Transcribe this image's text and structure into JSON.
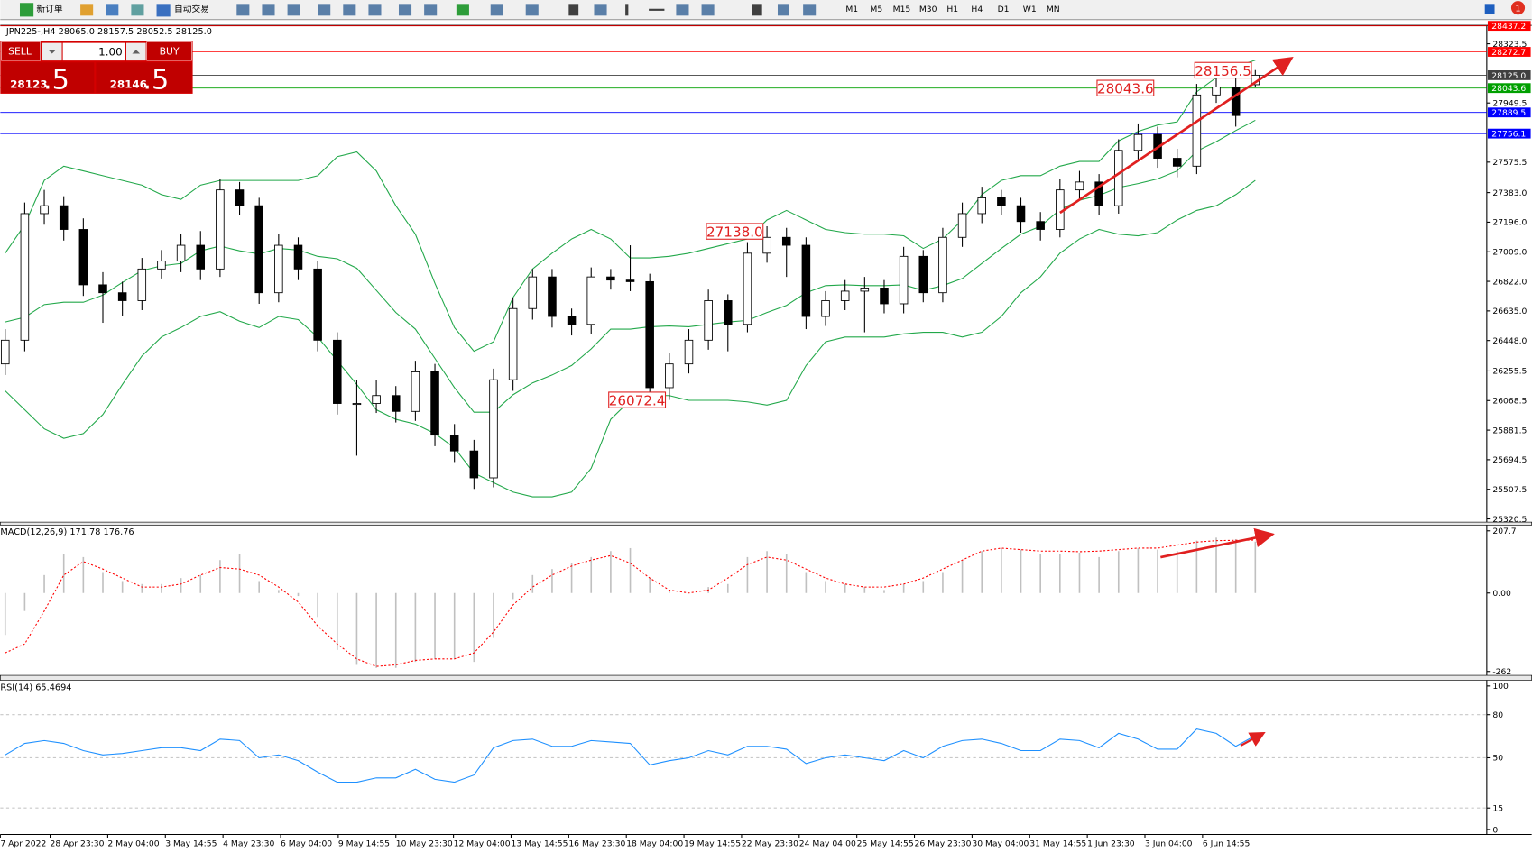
{
  "toolbar": {
    "new_order": "新订单",
    "auto_trading": "自动交易",
    "timeframes": [
      "M1",
      "M5",
      "M15",
      "M30",
      "H1",
      "H4",
      "D1",
      "W1",
      "MN"
    ],
    "alerts": "1"
  },
  "trade_panel": {
    "sell": "SELL",
    "buy": "BUY",
    "lots": "1.00",
    "bid_main": "28123",
    "bid_tail": ".5",
    "ask_main": "28146",
    "ask_tail": ".5"
  },
  "chart_data": [
    {
      "type": "candlestick",
      "title": "JPN225-,H4  28065.0 28157.5 28052.5 28125.0",
      "xlim": [
        -0.25,
        75.85
      ],
      "xticks": [
        {
          "value": -0.25,
          "label": "7 Apr 2022"
        },
        {
          "value": 2.3,
          "label": "28 Apr 23:30"
        },
        {
          "value": 5.25,
          "label": "2 May 04:00"
        },
        {
          "value": 8.2,
          "label": "3 May 14:55"
        },
        {
          "value": 11.15,
          "label": "4 May 23:30"
        },
        {
          "value": 14.1,
          "label": "6 May 04:00"
        },
        {
          "value": 17.05,
          "label": "9 May 14:55"
        },
        {
          "value": 20,
          "label": "10 May 23:30"
        },
        {
          "value": 22.95,
          "label": "12 May 04:00"
        },
        {
          "value": 25.9,
          "label": "13 May 14:55"
        },
        {
          "value": 28.85,
          "label": "16 May 23:30"
        },
        {
          "value": 31.8,
          "label": "18 May 04:00"
        },
        {
          "value": 34.75,
          "label": "19 May 14:55"
        },
        {
          "value": 37.7,
          "label": "22 May 23:30"
        },
        {
          "value": 40.65,
          "label": "24 May 04:00"
        },
        {
          "value": 43.6,
          "label": "25 May 14:55"
        },
        {
          "value": 46.55,
          "label": "26 May 23:30"
        },
        {
          "value": 49.5,
          "label": "30 May 04:00"
        },
        {
          "value": 52.45,
          "label": "31 May 14:55"
        },
        {
          "value": 55.4,
          "label": "1 Jun 23:30"
        },
        {
          "value": 58.35,
          "label": "3 Jun 04:00"
        },
        {
          "value": 61.3,
          "label": "6 Jun 14:55"
        }
      ],
      "ylim": [
        25300,
        28440
      ],
      "yticks": [
        28323.5,
        27949.5,
        27575.5,
        {
          "value": 27383,
          "label": "27383.0"
        },
        {
          "value": 27196,
          "label": "27196.0"
        },
        {
          "value": 27009,
          "label": "27009.0"
        },
        {
          "value": 26822,
          "label": "26822.0"
        },
        {
          "value": 26635,
          "label": "26635.0"
        },
        {
          "value": 26448,
          "label": "26448.0"
        },
        26255.5,
        26068.5,
        25881.5,
        25694.5,
        25507.5,
        25320.5
      ],
      "up_color": "#ffffff",
      "down_color": "#000000",
      "open": [
        26300,
        26450,
        27250,
        27300,
        27150,
        26800,
        26750,
        26700,
        26900,
        26950,
        27050,
        26900,
        27400,
        27300,
        26750,
        27050,
        26900,
        26450,
        26050,
        26050,
        26100,
        26000,
        26250,
        25850,
        25750,
        25580,
        26200,
        26650,
        26850,
        26600,
        26550,
        26850,
        26830,
        26820,
        26150,
        26300,
        26450,
        26700,
        26550,
        27000,
        27100,
        27050,
        26600,
        26700,
        26760,
        26780,
        26680,
        26980,
        26750,
        27100,
        27250,
        27350,
        27300,
        27200,
        27150,
        27400,
        27450,
        27300,
        27650,
        27750,
        27600,
        27550,
        28000,
        28050,
        28065
      ],
      "high": [
        26520,
        27320,
        27400,
        27360,
        27220,
        26880,
        26820,
        26970,
        27020,
        27120,
        27140,
        27470,
        27450,
        27350,
        27120,
        27100,
        26950,
        26500,
        26200,
        26200,
        26160,
        26320,
        26300,
        25920,
        25820,
        26270,
        26720,
        26900,
        26900,
        26650,
        26910,
        26900,
        27050,
        26870,
        26370,
        26520,
        26770,
        26740,
        27070,
        27170,
        27160,
        27100,
        26760,
        26830,
        26850,
        26830,
        27040,
        27020,
        27160,
        27320,
        27420,
        27400,
        27350,
        27260,
        27470,
        27520,
        27500,
        27720,
        27820,
        27800,
        27660,
        28070,
        28110,
        28110,
        28157.5
      ],
      "low": [
        26230,
        26380,
        27180,
        27080,
        26730,
        26560,
        26600,
        26640,
        26840,
        26880,
        26830,
        26850,
        27240,
        26680,
        26690,
        26830,
        26380,
        25980,
        25720,
        25990,
        25930,
        25940,
        25780,
        25680,
        25510,
        25520,
        26130,
        26580,
        26530,
        26480,
        26490,
        26770,
        26760,
        26090,
        26072.4,
        26240,
        26390,
        26380,
        26500,
        26940,
        26850,
        26520,
        26540,
        26640,
        26500,
        26620,
        26620,
        26690,
        26690,
        27040,
        27190,
        27240,
        27130,
        27080,
        27100,
        27340,
        27240,
        27250,
        27590,
        27540,
        27480,
        27500,
        27950,
        27800,
        28052.5
      ],
      "close": [
        26450,
        27250,
        27300,
        27150,
        26800,
        26750,
        26700,
        26900,
        26950,
        27050,
        26900,
        27400,
        27300,
        26750,
        27050,
        26900,
        26450,
        26050,
        26050,
        26100,
        26000,
        26250,
        25850,
        25750,
        25580,
        26200,
        26650,
        26850,
        26600,
        26550,
        26850,
        26830,
        26820,
        26150,
        26300,
        26450,
        26700,
        26550,
        27000,
        27100,
        27050,
        26600,
        26700,
        26760,
        26780,
        26680,
        26980,
        26750,
        27100,
        27250,
        27350,
        27300,
        27200,
        27150,
        27400,
        27450,
        27300,
        27650,
        27750,
        27600,
        27550,
        28000,
        28050,
        27870,
        28125
      ],
      "bands": [
        {
          "color": "#22a84a",
          "values": [
            27000,
            27180,
            27460,
            27550,
            27520,
            27490,
            27460,
            27430,
            27370,
            27340,
            27430,
            27460,
            27460,
            27460,
            27460,
            27460,
            27490,
            27610,
            27640,
            27520,
            27300,
            27120,
            26810,
            26530,
            26380,
            26440,
            26720,
            26900,
            27000,
            27090,
            27150,
            27090,
            26970,
            26970,
            26980,
            27000,
            27030,
            27060,
            27090,
            27210,
            27270,
            27210,
            27150,
            27130,
            27120,
            27120,
            27110,
            27030,
            27090,
            27210,
            27370,
            27460,
            27490,
            27490,
            27550,
            27580,
            27580,
            27710,
            27770,
            27810,
            27830,
            28020,
            28110,
            28180,
            28220
          ]
        },
        {
          "color": "#22a84a",
          "values": [
            26565,
            26595,
            26675,
            26690,
            26690,
            26735,
            26815,
            26890,
            26920,
            26935,
            27015,
            27045,
            27015,
            26995,
            27030,
            27020,
            26980,
            26965,
            26905,
            26765,
            26625,
            26520,
            26335,
            26150,
            25995,
            25995,
            26105,
            26180,
            26230,
            26290,
            26395,
            26520,
            26520,
            26535,
            26540,
            26535,
            26550,
            26565,
            26575,
            26625,
            26670,
            26750,
            26795,
            26800,
            26795,
            26795,
            26800,
            26765,
            26795,
            26840,
            26935,
            27030,
            27120,
            27170,
            27275,
            27335,
            27365,
            27415,
            27440,
            27470,
            27520,
            27645,
            27705,
            27775,
            27840
          ]
        },
        {
          "color": "#22a84a",
          "values": [
            26130,
            26010,
            25890,
            25830,
            25860,
            25980,
            26170,
            26350,
            26470,
            26530,
            26600,
            26630,
            26570,
            26530,
            26600,
            26580,
            26470,
            26320,
            26170,
            26010,
            25950,
            25920,
            25860,
            25770,
            25610,
            25550,
            25490,
            25460,
            25460,
            25490,
            25640,
            25950,
            26070,
            26100,
            26100,
            26070,
            26070,
            26070,
            26060,
            26040,
            26070,
            26290,
            26440,
            26470,
            26470,
            26470,
            26490,
            26500,
            26500,
            26470,
            26500,
            26600,
            26750,
            26850,
            27000,
            27090,
            27150,
            27120,
            27110,
            27130,
            27210,
            27270,
            27300,
            27370,
            27460
          ]
        }
      ],
      "levels": [
        {
          "value": 28437.2,
          "color": "#ff0000"
        },
        {
          "value": 28272.7,
          "color": "#ff0000"
        },
        {
          "value": 28125,
          "label": "28125.0",
          "color": "#404040"
        },
        {
          "value": 28043.6,
          "color": "#00a000"
        },
        {
          "value": 27889.5,
          "color": "#0000ff"
        },
        {
          "value": 27756.1,
          "color": "#0000ff"
        }
      ],
      "annotations": [
        {
          "value": 28156.5,
          "index": 64
        },
        {
          "value": 28043.6,
          "index": 59
        },
        {
          "value": 27138,
          "label": "27138.0",
          "index": 39
        },
        {
          "value": 26072.4,
          "index": 34
        }
      ]
    },
    {
      "type": "macd",
      "title": "MACD(12,26,9) 171.78 176.76",
      "ylim": [
        -275,
        227
      ],
      "yticks": [
        207.7,
        {
          "value": 0,
          "label": "0.00"
        },
        -262
      ],
      "histogram_color": "#c0c0c0",
      "signal_color": "#ff0000",
      "histogram": [
        -140,
        -60,
        60,
        130,
        120,
        70,
        40,
        30,
        30,
        50,
        60,
        110,
        130,
        40,
        10,
        -10,
        -80,
        -190,
        -240,
        -250,
        -250,
        -230,
        -220,
        -220,
        -230,
        -150,
        -20,
        60,
        80,
        100,
        120,
        140,
        150,
        50,
        10,
        0,
        20,
        30,
        120,
        140,
        130,
        70,
        40,
        30,
        20,
        10,
        30,
        40,
        70,
        110,
        140,
        150,
        145,
        130,
        130,
        135,
        120,
        140,
        150,
        145,
        140,
        175,
        185,
        180,
        171.78
      ],
      "signal": [
        -200,
        -170,
        -60,
        60,
        105,
        80,
        50,
        20,
        20,
        30,
        60,
        85,
        80,
        60,
        20,
        -30,
        -110,
        -170,
        -220,
        -245,
        -240,
        -225,
        -220,
        -220,
        -200,
        -130,
        -40,
        20,
        60,
        90,
        110,
        125,
        100,
        50,
        10,
        0,
        10,
        50,
        95,
        120,
        110,
        80,
        50,
        30,
        20,
        20,
        30,
        50,
        80,
        110,
        140,
        150,
        145,
        140,
        140,
        138,
        140,
        145,
        150,
        150,
        160,
        170,
        175,
        176,
        176.76
      ]
    },
    {
      "type": "line",
      "title": "RSI(14) 65.4694",
      "ylim": [
        -3.4,
        104
      ],
      "yticks": [
        100,
        80,
        50,
        15,
        0
      ],
      "color": "#1e90ff",
      "values": [
        52,
        60,
        62,
        60,
        55,
        52,
        53,
        55,
        57,
        57,
        55,
        63,
        62,
        50,
        52,
        48,
        40,
        33,
        33,
        36,
        36,
        42,
        35,
        33,
        38,
        57,
        62,
        63,
        58,
        58,
        62,
        61,
        60,
        45,
        48,
        50,
        55,
        52,
        58,
        58,
        56,
        46,
        50,
        52,
        50,
        48,
        55,
        50,
        58,
        62,
        63,
        60,
        55,
        55,
        63,
        62,
        57,
        67,
        63,
        56,
        56,
        70,
        67,
        58,
        65.4694
      ]
    }
  ]
}
